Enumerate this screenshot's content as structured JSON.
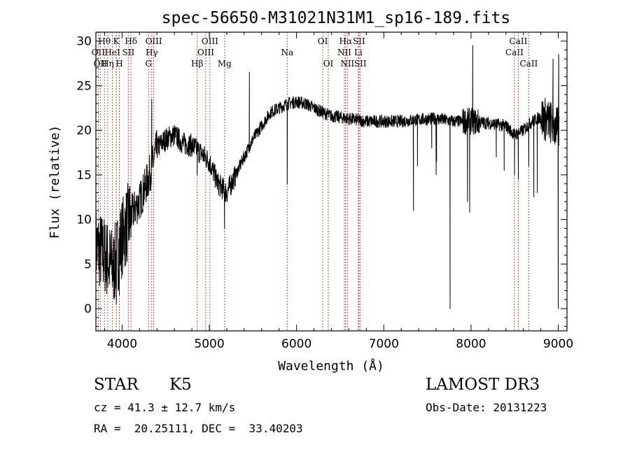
{
  "chart_data": {
    "type": "line",
    "title": "spec-56650-M31021N31M1_sp16-189.fits",
    "xlabel": "Wavelength (Å)",
    "ylabel": "Flux (relative)",
    "xlim": [
      3700,
      9100
    ],
    "ylim": [
      -2.5,
      31
    ],
    "xticks": [
      4000,
      5000,
      6000,
      7000,
      8000,
      9000
    ],
    "yticks": [
      0,
      5,
      10,
      15,
      20,
      25,
      30
    ],
    "series": [
      {
        "name": "flux",
        "anchors": [
          [
            3700,
            7
          ],
          [
            3800,
            6
          ],
          [
            3900,
            4.5
          ],
          [
            4000,
            8
          ],
          [
            4100,
            10.5
          ],
          [
            4200,
            12
          ],
          [
            4300,
            14.5
          ],
          [
            4400,
            18
          ],
          [
            4500,
            19
          ],
          [
            4600,
            19.5
          ],
          [
            4700,
            18.5
          ],
          [
            4800,
            18.3
          ],
          [
            4900,
            17.5
          ],
          [
            5000,
            16.5
          ],
          [
            5100,
            14
          ],
          [
            5200,
            13
          ],
          [
            5300,
            15
          ],
          [
            5400,
            17
          ],
          [
            5500,
            19
          ],
          [
            5600,
            20.5
          ],
          [
            5700,
            22
          ],
          [
            5800,
            22.5
          ],
          [
            5900,
            23
          ],
          [
            6000,
            23.2
          ],
          [
            6100,
            23
          ],
          [
            6200,
            22.5
          ],
          [
            6300,
            22
          ],
          [
            6400,
            21.6
          ],
          [
            6600,
            21.3
          ],
          [
            6800,
            21
          ],
          [
            7000,
            21
          ],
          [
            7200,
            21
          ],
          [
            7400,
            21.2
          ],
          [
            7600,
            21.3
          ],
          [
            7800,
            21
          ],
          [
            8000,
            21
          ],
          [
            8200,
            20.8
          ],
          [
            8400,
            20.5
          ],
          [
            8500,
            19.5
          ],
          [
            8600,
            20
          ],
          [
            8700,
            21
          ],
          [
            8800,
            21.5
          ],
          [
            8900,
            21
          ],
          [
            9000,
            20
          ]
        ],
        "features": [
          [
            3934,
            0.5
          ],
          [
            3969,
            1.5
          ],
          [
            4102,
            8
          ],
          [
            4340,
            23.5
          ],
          [
            4861,
            15
          ],
          [
            5175,
            9
          ],
          [
            5460,
            26.5
          ],
          [
            5893,
            14
          ],
          [
            7340,
            11
          ],
          [
            7386,
            16
          ],
          [
            7550,
            18
          ],
          [
            7600,
            15
          ],
          [
            7605,
            16.5
          ],
          [
            7760,
            0
          ],
          [
            7960,
            12
          ],
          [
            7985,
            10.8
          ],
          [
            8020,
            29.5
          ],
          [
            8290,
            17
          ],
          [
            8380,
            15.5
          ],
          [
            8498,
            15
          ],
          [
            8542,
            14.5
          ],
          [
            8662,
            16
          ],
          [
            8720,
            12.5
          ],
          [
            8760,
            13
          ],
          [
            8940,
            28
          ],
          [
            9000,
            0
          ],
          [
            9005,
            28.5
          ]
        ]
      }
    ],
    "line_markers": [
      {
        "wave": 3727,
        "label": "OII",
        "tier": 1
      },
      {
        "wave": 3750,
        "label": "OII",
        "tier": 2
      },
      {
        "wave": 3798,
        "label": "Hθ",
        "tier": 0
      },
      {
        "wave": 3835,
        "label": "Hη",
        "tier": 2
      },
      {
        "wave": 3889,
        "label": "HeI",
        "tier": 1
      },
      {
        "wave": 3934,
        "label": "K",
        "tier": 0
      },
      {
        "wave": 3969,
        "label": "H",
        "tier": 2
      },
      {
        "wave": 4072,
        "label": "SII",
        "tier": 1
      },
      {
        "wave": 4102,
        "label": "Hδ",
        "tier": 0
      },
      {
        "wave": 4304,
        "label": "G",
        "tier": 2
      },
      {
        "wave": 4340,
        "label": "Hγ",
        "tier": 1
      },
      {
        "wave": 4363,
        "label": "OIII",
        "tier": 0
      },
      {
        "wave": 4861,
        "label": "Hβ",
        "tier": 2
      },
      {
        "wave": 4959,
        "label": "OIII",
        "tier": 1
      },
      {
        "wave": 5007,
        "label": "OIII",
        "tier": 0
      },
      {
        "wave": 5175,
        "label": "Mg",
        "tier": 2
      },
      {
        "wave": 5893,
        "label": "Na",
        "tier": 1
      },
      {
        "wave": 6300,
        "label": "OI",
        "tier": 0
      },
      {
        "wave": 6364,
        "label": "OI",
        "tier": 2
      },
      {
        "wave": 6548,
        "label": "NII",
        "tier": 1
      },
      {
        "wave": 6563,
        "label": "Hα",
        "tier": 0
      },
      {
        "wave": 6583,
        "label": "NII",
        "tier": 2
      },
      {
        "wave": 6708,
        "label": "Li",
        "tier": 1
      },
      {
        "wave": 6716,
        "label": "SII",
        "tier": 0
      },
      {
        "wave": 6731,
        "label": "SII",
        "tier": 2
      },
      {
        "wave": 8498,
        "label": "CaII",
        "tier": 1
      },
      {
        "wave": 8542,
        "label": "CaII",
        "tier": 0
      },
      {
        "wave": 8662,
        "label": "CaII",
        "tier": 2
      }
    ]
  },
  "info": {
    "object_class": "STAR",
    "subclass": "K5",
    "survey": "LAMOST DR3",
    "cz": "cz = 41.3 ± 12.7 km/s",
    "obs_date": "Obs-Date: 20131223",
    "coords": "RA =  20.25111, DEC =  33.40203"
  }
}
